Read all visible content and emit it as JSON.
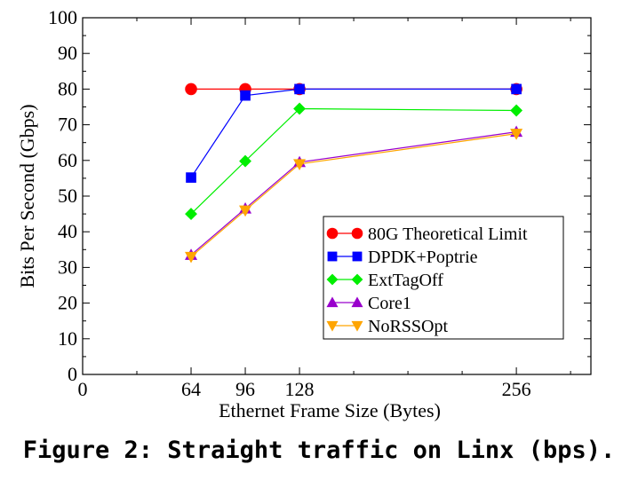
{
  "caption": "Figure 2: Straight traffic on Linx (bps).",
  "chart_data": {
    "type": "line",
    "title": "",
    "xlabel": "Ethernet Frame Size (Bytes)",
    "ylabel": "Bits Per Second (Gbps)",
    "xlim": [
      0,
      300
    ],
    "ylim": [
      0,
      100
    ],
    "x_ticks": [
      0,
      64,
      96,
      128,
      256
    ],
    "y_ticks": [
      0,
      10,
      20,
      30,
      40,
      50,
      60,
      70,
      80,
      90,
      100
    ],
    "grid": false,
    "legend_position": "bottom-right",
    "x": [
      64,
      96,
      128,
      256
    ],
    "series": [
      {
        "name": "80G Theoretical Limit",
        "values": [
          80,
          80,
          80,
          80
        ],
        "color": "#ff0000",
        "marker": "circle"
      },
      {
        "name": "DPDK+Poptrie",
        "values": [
          55.2,
          78.2,
          80,
          80
        ],
        "color": "#0000ff",
        "marker": "square"
      },
      {
        "name": "ExtTagOff",
        "values": [
          45,
          59.8,
          74.5,
          74
        ],
        "color": "#00ee00",
        "marker": "diamond"
      },
      {
        "name": "Core1",
        "values": [
          33.5,
          46.5,
          59.5,
          68
        ],
        "color": "#9900cc",
        "marker": "triangle-up"
      },
      {
        "name": "NoRSSOpt",
        "values": [
          33,
          46,
          59,
          67.5
        ],
        "color": "#ffa500",
        "marker": "triangle-down"
      }
    ]
  }
}
